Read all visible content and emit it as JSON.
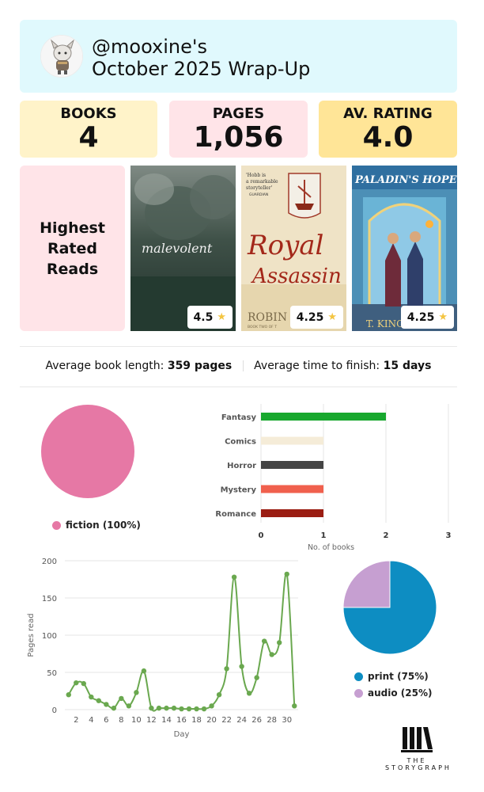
{
  "header": {
    "handle": "@mooxine's",
    "title": "October 2025 Wrap-Up"
  },
  "stats": [
    {
      "label": "BOOKS",
      "value": "4",
      "color": "#fff3c9"
    },
    {
      "label": "PAGES",
      "value": "1,056",
      "color": "#ffe4e8"
    },
    {
      "label": "AV. RATING",
      "value": "4.0",
      "color": "#ffe597"
    }
  ],
  "highest_rated": {
    "heading": "Highest Rated Reads",
    "books": [
      {
        "cover_title": "malevolent",
        "rating": "4.5"
      },
      {
        "cover_title_1": "Royal",
        "cover_title_2": "Assassin",
        "cover_quote_1": "'Hobb is",
        "cover_quote_2": "a remarkable",
        "cover_quote_3": "storyteller'",
        "cover_quote_src": "GUARDIAN",
        "cover_author": "ROBIN",
        "cover_series": "BOOK TWO OF T",
        "rating": "4.25"
      },
      {
        "cover_title": "PALADIN'S HOPE",
        "cover_author": "T. KING",
        "rating": "4.25"
      }
    ]
  },
  "averages": {
    "length_label": "Average book length:",
    "length_value": "359 pages",
    "finish_label": "Average time to finish:",
    "finish_value": "15 days"
  },
  "fiction_chart": {
    "type": "pie",
    "slices": [
      {
        "label": "fiction (100%)",
        "value": 100,
        "color": "#e678a5"
      }
    ]
  },
  "genre_chart": {
    "type": "bar",
    "categories": [
      "Fantasy",
      "Comics",
      "Horror",
      "Mystery",
      "Romance"
    ],
    "values": [
      2,
      1,
      1,
      1,
      1
    ],
    "colors": [
      "#18a82e",
      "#f5ecd8",
      "#444444",
      "#f0604d",
      "#9b1d13"
    ],
    "xlabel": "No. of books",
    "xticks": [
      "0",
      "1",
      "2",
      "3"
    ],
    "xlim": [
      0,
      3
    ]
  },
  "pages_chart": {
    "type": "line",
    "ylabel": "Pages read",
    "xlabel": "Day",
    "yticks": [
      "0",
      "50",
      "100",
      "150",
      "200"
    ],
    "ylim": [
      0,
      200
    ],
    "xticks": [
      "2",
      "4",
      "6",
      "8",
      "10",
      "12",
      "14",
      "16",
      "18",
      "20",
      "22",
      "24",
      "26",
      "28",
      "30"
    ],
    "color": "#6aa84f",
    "x": [
      1,
      2,
      3,
      4,
      5,
      6,
      7,
      8,
      9,
      10,
      11,
      12,
      13,
      14,
      15,
      16,
      17,
      18,
      19,
      20,
      21,
      22,
      23,
      24,
      25,
      26,
      27,
      28,
      29,
      30,
      31
    ],
    "y": [
      20,
      36,
      35,
      17,
      12,
      7,
      2,
      15,
      5,
      23,
      52,
      2,
      2,
      2,
      2,
      1,
      1,
      1,
      1,
      5,
      20,
      55,
      178,
      58,
      22,
      43,
      92,
      74,
      90,
      182,
      5
    ]
  },
  "format_chart": {
    "type": "pie",
    "slices": [
      {
        "label": "print (75%)",
        "value": 75,
        "color": "#0d8dc2"
      },
      {
        "label": "audio (25%)",
        "value": 25,
        "color": "#c69fd1"
      }
    ]
  },
  "footer": {
    "the": "THE",
    "brand": "STORYGRAPH"
  }
}
